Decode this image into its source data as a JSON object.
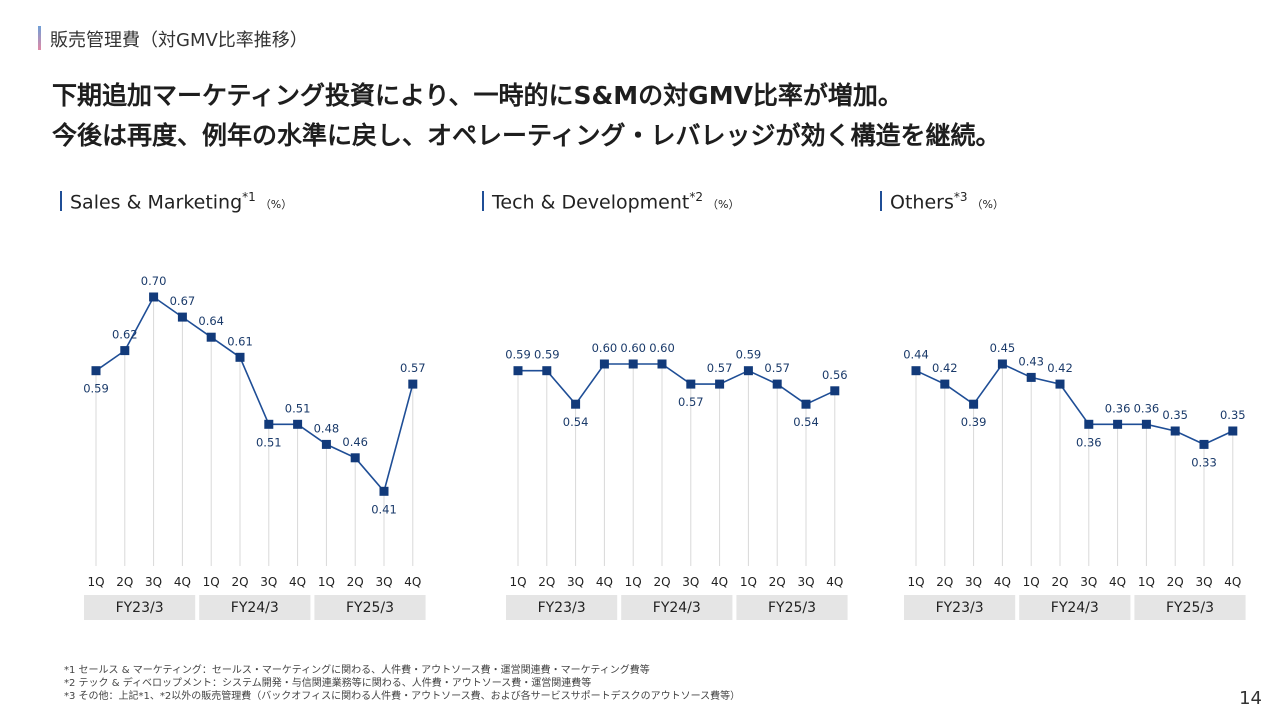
{
  "header": {
    "title": "販売管理費（対GMV比率推移）"
  },
  "headline": {
    "line1": "下期追加マーケティング投資により、一時的にS&Mの対GMV比率が増加。",
    "line2": "今後は再度、例年の水準に戻し、オペレーティング・レバレッジが効く構造を継続。"
  },
  "charts": [
    {
      "title": "Sales & Marketing",
      "sup": "*1",
      "unit": "（%）"
    },
    {
      "title": "Tech & Development",
      "sup": "*2",
      "unit": "（%）"
    },
    {
      "title": "Others",
      "sup": "*3",
      "unit": "（%）"
    }
  ],
  "chart_data": [
    {
      "type": "line",
      "title": "Sales & Marketing*1（%）",
      "categories": [
        "1Q",
        "2Q",
        "3Q",
        "4Q",
        "1Q",
        "2Q",
        "3Q",
        "4Q",
        "1Q",
        "2Q",
        "3Q",
        "4Q"
      ],
      "groups": [
        "FY23/3",
        "FY24/3",
        "FY25/3"
      ],
      "series": [
        {
          "values": [
            0.59,
            0.62,
            0.7,
            0.67,
            0.64,
            0.61,
            0.51,
            0.51,
            0.48,
            0.46,
            0.41,
            0.57
          ]
        }
      ],
      "ylim": [
        0.3,
        0.8
      ],
      "grid": true,
      "colors": {
        "line": "#1f4e96",
        "marker": "#123a7a",
        "grid": "#d9d9d9",
        "group_bg": "#e5e5e5"
      }
    },
    {
      "type": "line",
      "title": "Tech & Development*2（%）",
      "categories": [
        "1Q",
        "2Q",
        "3Q",
        "4Q",
        "1Q",
        "2Q",
        "3Q",
        "4Q",
        "1Q",
        "2Q",
        "3Q",
        "4Q"
      ],
      "groups": [
        "FY23/3",
        "FY24/3",
        "FY25/3"
      ],
      "series": [
        {
          "values": [
            0.59,
            0.59,
            0.54,
            0.6,
            0.6,
            0.6,
            0.57,
            0.57,
            0.59,
            0.57,
            0.54,
            0.56
          ]
        }
      ],
      "ylim": [
        0.3,
        0.8
      ],
      "grid": true,
      "colors": {
        "line": "#1f4e96",
        "marker": "#123a7a",
        "grid": "#d9d9d9",
        "group_bg": "#e5e5e5"
      }
    },
    {
      "type": "line",
      "title": "Others*3（%）",
      "categories": [
        "1Q",
        "2Q",
        "3Q",
        "4Q",
        "1Q",
        "2Q",
        "3Q",
        "4Q",
        "1Q",
        "2Q",
        "3Q",
        "4Q"
      ],
      "groups": [
        "FY23/3",
        "FY24/3",
        "FY25/3"
      ],
      "series": [
        {
          "values": [
            0.44,
            0.42,
            0.39,
            0.45,
            0.43,
            0.42,
            0.36,
            0.36,
            0.36,
            0.35,
            0.33,
            0.35
          ]
        }
      ],
      "ylim": [
        0.15,
        0.65
      ],
      "grid": true,
      "colors": {
        "line": "#1f4e96",
        "marker": "#123a7a",
        "grid": "#d9d9d9",
        "group_bg": "#e5e5e5"
      }
    }
  ],
  "footnotes": [
    "*1 セールス & マーケティング：セールス・マーケティングに関わる、人件費・アウトソース費・運営関連費・マーケティング費等",
    "*2 テック & ディベロップメント：システム開発・与信関連業務等に関わる、人件費・アウトソース費・運営関連費等",
    "*3 その他：上記*1、*2以外の販売管理費（バックオフィスに関わる人件費・アウトソース費、および各サービスサポートデスクのアウトソース費等）"
  ],
  "page_number": "14"
}
